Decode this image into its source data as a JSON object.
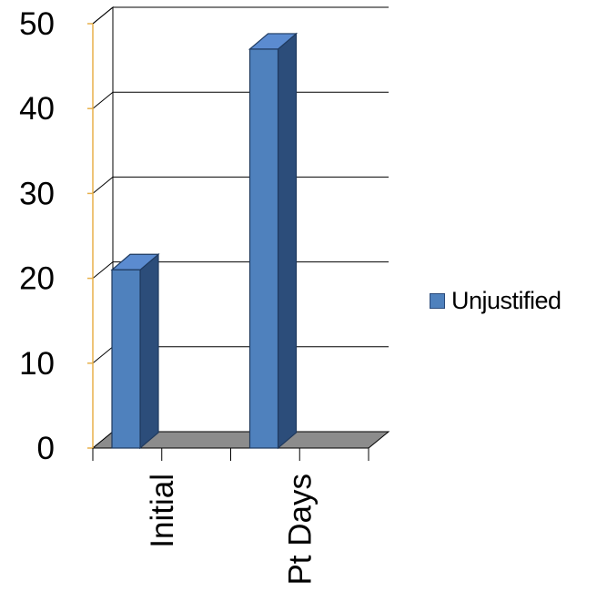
{
  "chart_data": {
    "type": "bar",
    "title": "",
    "xlabel": "",
    "ylabel": "",
    "categories": [
      "Initial",
      "Pt Days"
    ],
    "series": [
      {
        "name": "Unjustified",
        "values": [
          21,
          47
        ]
      }
    ],
    "ylim": [
      0,
      50
    ],
    "yticks": [
      "0",
      "10",
      "20",
      "30",
      "40",
      "50"
    ],
    "grid": true,
    "three_d": true,
    "legend_position": "right",
    "colors": {
      "bar_front": "#4f81bd",
      "bar_top": "#5b8bd0",
      "bar_side": "#2c4d7a",
      "floor": "#8c8c8c",
      "axis": "#e8b04a",
      "grid": "#000000"
    }
  }
}
